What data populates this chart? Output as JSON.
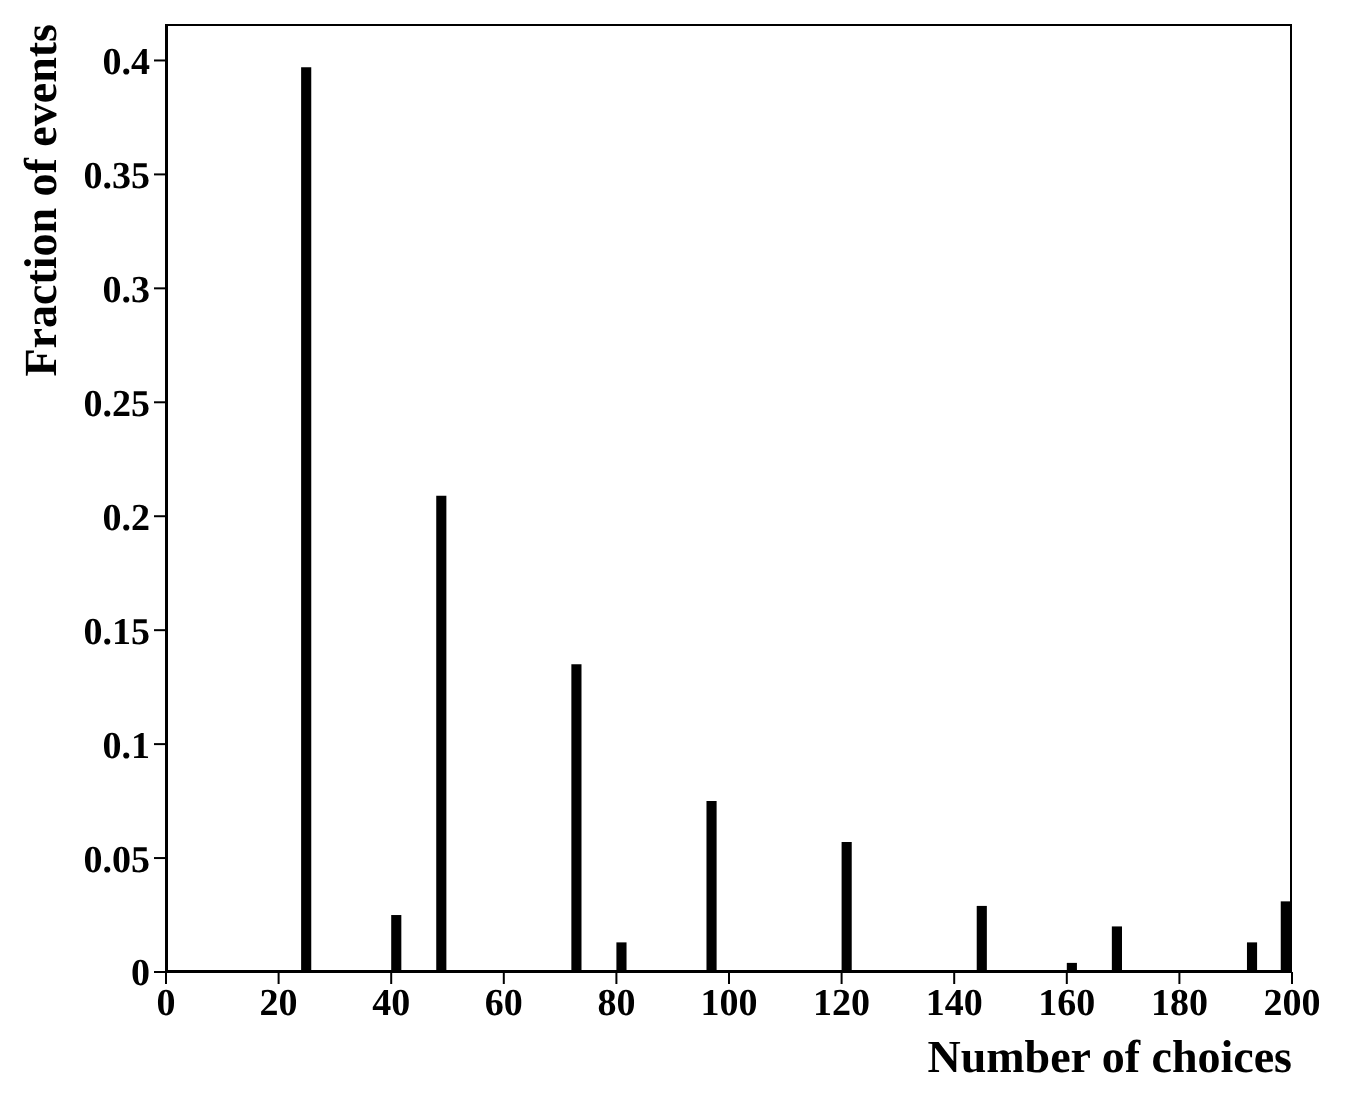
{
  "chart_data": {
    "type": "histogram",
    "xlabel": "Number of choices",
    "ylabel": "Fraction of events",
    "color": "#000000",
    "bins": [
      0,
      2,
      4,
      6,
      8,
      10,
      12,
      14,
      16,
      18,
      20,
      22,
      24,
      26,
      28,
      30,
      32,
      34,
      36,
      38,
      40,
      42,
      44,
      46,
      48,
      50,
      52,
      54,
      56,
      58,
      60,
      62,
      64,
      66,
      68,
      70,
      72,
      74,
      76,
      78,
      80,
      82,
      84,
      86,
      88,
      90,
      92,
      94,
      96,
      98,
      100,
      102,
      104,
      106,
      108,
      110,
      112,
      114,
      116,
      118,
      120,
      122,
      124,
      126,
      128,
      130,
      132,
      134,
      136,
      138,
      140,
      142,
      144,
      146,
      148,
      150,
      152,
      154,
      156,
      158,
      160,
      162,
      164,
      166,
      168,
      170,
      172,
      174,
      176,
      178,
      180,
      182,
      184,
      186,
      188,
      190,
      192,
      194,
      196,
      198,
      200
    ],
    "values": [
      0,
      0,
      0,
      0,
      0,
      0,
      0,
      0,
      0,
      0,
      0,
      0,
      0.397,
      0,
      0,
      0,
      0,
      0,
      0,
      0,
      0.025,
      0,
      0,
      0,
      0.209,
      0,
      0,
      0,
      0,
      0,
      null,
      0,
      0,
      0,
      0,
      0,
      0.135,
      0,
      0,
      0,
      0.013,
      0,
      0,
      0,
      0,
      0,
      0,
      0,
      0.075,
      0,
      0,
      0,
      0,
      0,
      0,
      0,
      0,
      0,
      0,
      0,
      0.057,
      0,
      0,
      0,
      0,
      0,
      0,
      0,
      0,
      0,
      0,
      0,
      0.029,
      0,
      0,
      0,
      0,
      0,
      0,
      0,
      0.004,
      0,
      0,
      0,
      0.02,
      0,
      0,
      0,
      0,
      0,
      0,
      0,
      0,
      0,
      0,
      0,
      0.013,
      0,
      0,
      0.031
    ],
    "xlim": [
      0,
      200
    ],
    "xticks": [
      0,
      20,
      40,
      60,
      80,
      100,
      120,
      140,
      160,
      180,
      200
    ],
    "ylim": [
      0,
      0.416
    ],
    "yticks": [
      0,
      0.05,
      0.1,
      0.15,
      0.2,
      0.25,
      0.3,
      0.35,
      0.4
    ],
    "grid": false,
    "legend": false
  }
}
